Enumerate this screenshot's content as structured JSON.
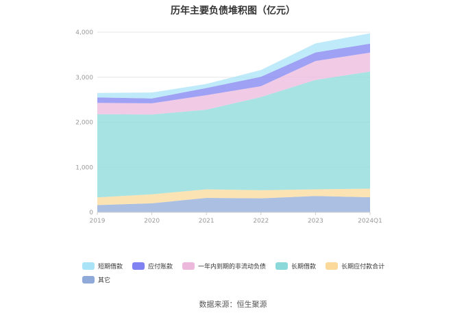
{
  "chart_data": {
    "type": "area",
    "stacked": true,
    "title": "历年主要负债堆积图（亿元）",
    "categories": [
      "2019",
      "2020",
      "2021",
      "2022",
      "2023",
      "2024Q1"
    ],
    "ylim": [
      0,
      4000
    ],
    "yticks": [
      0,
      1000,
      2000,
      3000,
      4000
    ],
    "ytick_labels": [
      "0",
      "1,000",
      "2,000",
      "3,000",
      "4,000"
    ],
    "series": [
      {
        "name": "其它",
        "color": "#8fa9d8",
        "values": [
          160,
          200,
          320,
          310,
          360,
          335
        ]
      },
      {
        "name": "长期应付款合计",
        "color": "#fbd99a",
        "values": [
          170,
          200,
          190,
          180,
          150,
          190
        ]
      },
      {
        "name": "长期借款",
        "color": "#8bd9d9",
        "values": [
          1850,
          1770,
          1770,
          2070,
          2430,
          2600
        ]
      },
      {
        "name": "一年内到期的非流动负债",
        "color": "#ecb9dd",
        "values": [
          250,
          250,
          320,
          240,
          420,
          420
        ]
      },
      {
        "name": "应付账款",
        "color": "#7f82f0",
        "values": [
          120,
          110,
          160,
          210,
          190,
          200
        ]
      },
      {
        "name": "短期借款",
        "color": "#a8e3f7",
        "values": [
          100,
          130,
          90,
          150,
          200,
          230
        ]
      }
    ],
    "legend_order": [
      "短期借款",
      "应付账款",
      "一年内到期的非流动负债",
      "长期借款",
      "长期应付款合计",
      "其它"
    ]
  },
  "source_text": "数据来源：恒生聚源"
}
